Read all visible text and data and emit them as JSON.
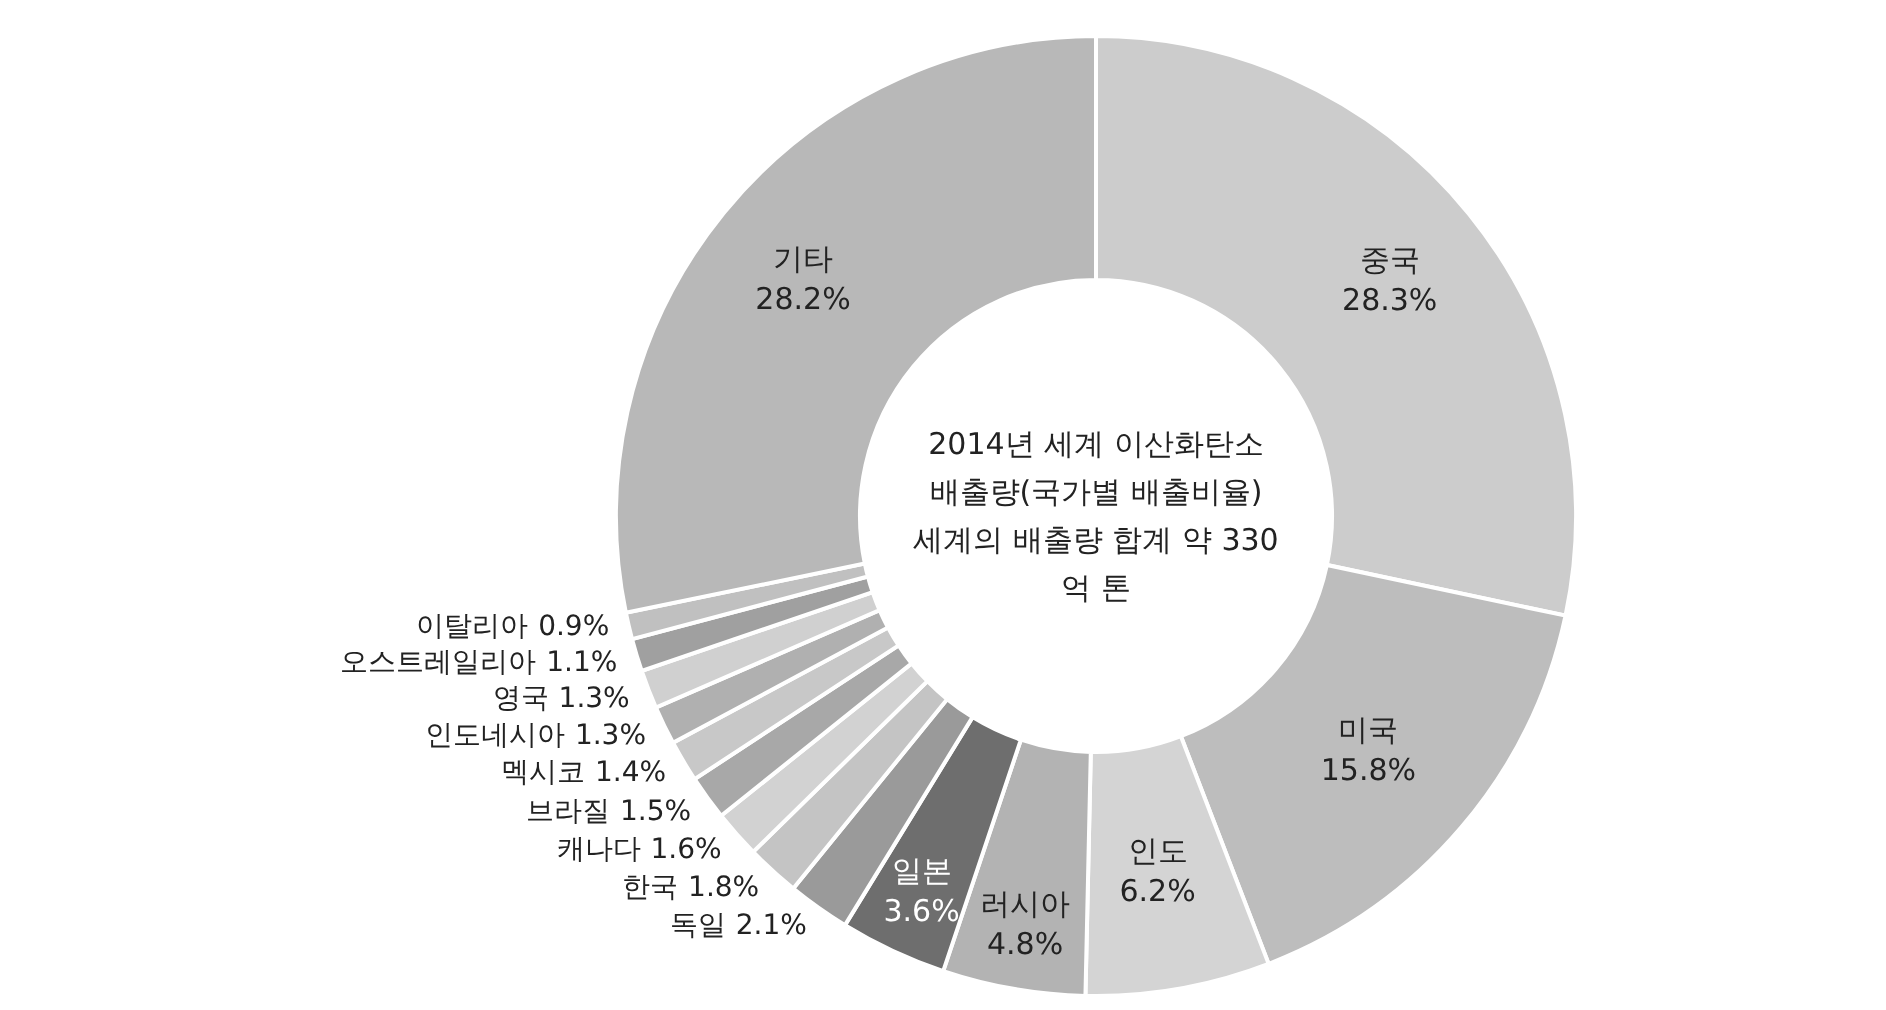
{
  "chart_data": {
    "type": "donut",
    "title": "2014년 세계 이산화탄소 배출량(국가별 배출비율)",
    "subtitle": "세계의 배출량 합계 약 330억 톤",
    "categories": [
      "중국",
      "미국",
      "인도",
      "러시아",
      "일본",
      "독일",
      "한국",
      "캐나다",
      "브라질",
      "멕시코",
      "인도네시아",
      "영국",
      "오스트레일리아",
      "이탈리아",
      "기타"
    ],
    "values": [
      28.3,
      15.8,
      6.2,
      4.8,
      3.6,
      2.1,
      1.8,
      1.6,
      1.5,
      1.4,
      1.3,
      1.3,
      1.1,
      0.9,
      28.2
    ],
    "value_labels": [
      "28.3%",
      "15.8%",
      "6.2%",
      "4.8%",
      "3.6%",
      "2.1%",
      "1.8%",
      "1.6%",
      "1.5%",
      "1.4%",
      "1.3%",
      "1.3%",
      "1.1%",
      "0.9%",
      "28.2%"
    ],
    "colors": [
      "#cccccc",
      "#bdbdbd",
      "#d4d4d4",
      "#b3b3b3",
      "#6e6e6e",
      "#9a9a9a",
      "#c4c4c4",
      "#d2d2d2",
      "#a8a8a8",
      "#c8c8c8",
      "#b0b0b0",
      "#d0d0d0",
      "#a0a0a0",
      "#c0c0c0",
      "#b8b8b8"
    ],
    "data_labels": true
  }
}
